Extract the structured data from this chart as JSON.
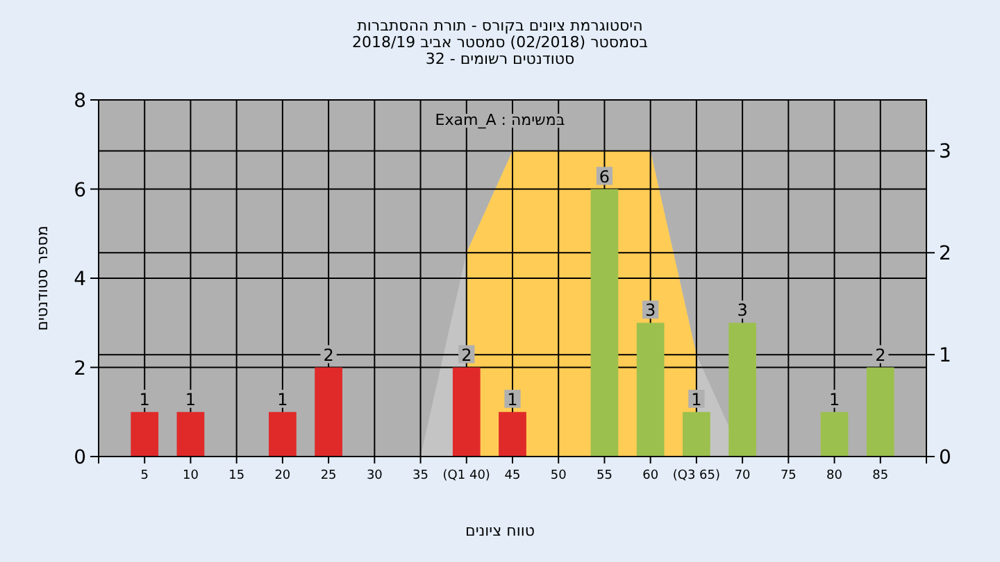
{
  "chart_data": {
    "type": "bar",
    "title": "היסטוגרמת ציונים בקורס - תורת ההסתברות",
    "subtitle": "בסמסטר (02/2018) סמסטר אביב 2018/19\nסטודנטים רשומים - 32",
    "xlabel": "טווח ציונים",
    "ylabel": "מספר סטודנטים",
    "xlim": [
      0,
      90
    ],
    "xticks": [
      {
        "value": 0,
        "label": null
      },
      5,
      10,
      15,
      20,
      25,
      30,
      35,
      {
        "value": 40,
        "label": "(Q1 40)"
      },
      45,
      50,
      55,
      60,
      {
        "value": 65,
        "label": "(Q3 65)"
      },
      70,
      75,
      80,
      85,
      {
        "value": 90,
        "label": null
      }
    ],
    "ylim": [
      0,
      8
    ],
    "yticks": [
      0,
      2,
      4,
      6,
      8
    ],
    "y2lim": [
      0,
      3.5
    ],
    "y2ticks": [
      0,
      1,
      2,
      3
    ],
    "grid": true,
    "series": [
      {
        "type": "area",
        "axis": "y2",
        "color": "#c4c4c4",
        "x": [
          35,
          40,
          45,
          60,
          65,
          70
        ],
        "values": [
          0,
          2,
          3,
          3,
          1,
          0
        ]
      },
      {
        "type": "area",
        "axis": "y2",
        "color": "#ffcc55",
        "x": [
          40,
          45,
          60,
          65
        ],
        "values": [
          2,
          3,
          3,
          1
        ]
      },
      {
        "x": [
          5,
          10,
          15,
          20,
          25,
          30,
          35,
          40,
          45,
          50,
          55,
          60,
          65,
          70,
          75,
          80,
          85
        ],
        "values": [
          1,
          1,
          0,
          1,
          2,
          0,
          0,
          2,
          1,
          0,
          6,
          3,
          1,
          3,
          0,
          1,
          2
        ],
        "value_labels": [
          "1",
          "1",
          null,
          "1",
          "2",
          null,
          null,
          "2",
          "1",
          null,
          "6",
          "3",
          "1",
          "3",
          null,
          "1",
          "2"
        ],
        "colors": [
          "#e02a2a",
          "#e02a2a",
          "#e02a2a",
          "#e02a2a",
          "#e02a2a",
          "#e02a2a",
          "#e02a2a",
          "#e02a2a",
          "#e02a2a",
          "#9cc04e",
          "#9cc04e",
          "#9cc04e",
          "#9cc04e",
          "#9cc04e",
          "#9cc04e",
          "#9cc04e",
          "#9cc04e"
        ]
      }
    ],
    "annotations": [
      "Exam_A : במשימה"
    ]
  }
}
